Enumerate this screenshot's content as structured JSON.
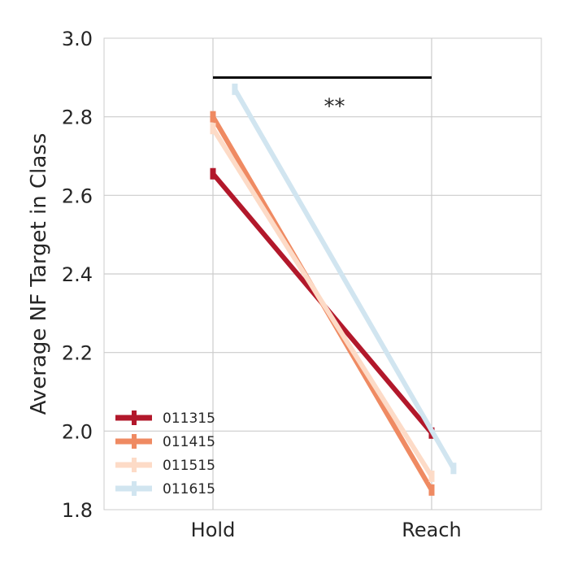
{
  "chart_data": {
    "type": "line",
    "categories": [
      "Hold",
      "Reach"
    ],
    "ylabel": "Average NF Target in Class",
    "xlabel": "",
    "ylim": [
      1.8,
      3.0
    ],
    "yticks": [
      "1.8",
      "2.0",
      "2.2",
      "2.4",
      "2.6",
      "2.8",
      "3.0"
    ],
    "grid": true,
    "legend_position": "lower-left",
    "series": [
      {
        "name": "011315",
        "color": "#b2182b",
        "values": [
          2.655,
          1.995
        ],
        "x_offset": -0.0
      },
      {
        "name": "011415",
        "color": "#ef8a62",
        "values": [
          2.8,
          1.85
        ],
        "x_offset": 0.0
      },
      {
        "name": "011515",
        "color": "#fddbc7",
        "values": [
          2.77,
          1.885
        ],
        "x_offset": 0.0
      },
      {
        "name": "011615",
        "color": "#d1e5f0",
        "values": [
          2.87,
          1.905
        ],
        "x_offset": 0.1
      }
    ],
    "annotation": {
      "text": "**",
      "bracket_y": 2.9,
      "from": "Hold",
      "to": "Reach"
    }
  }
}
